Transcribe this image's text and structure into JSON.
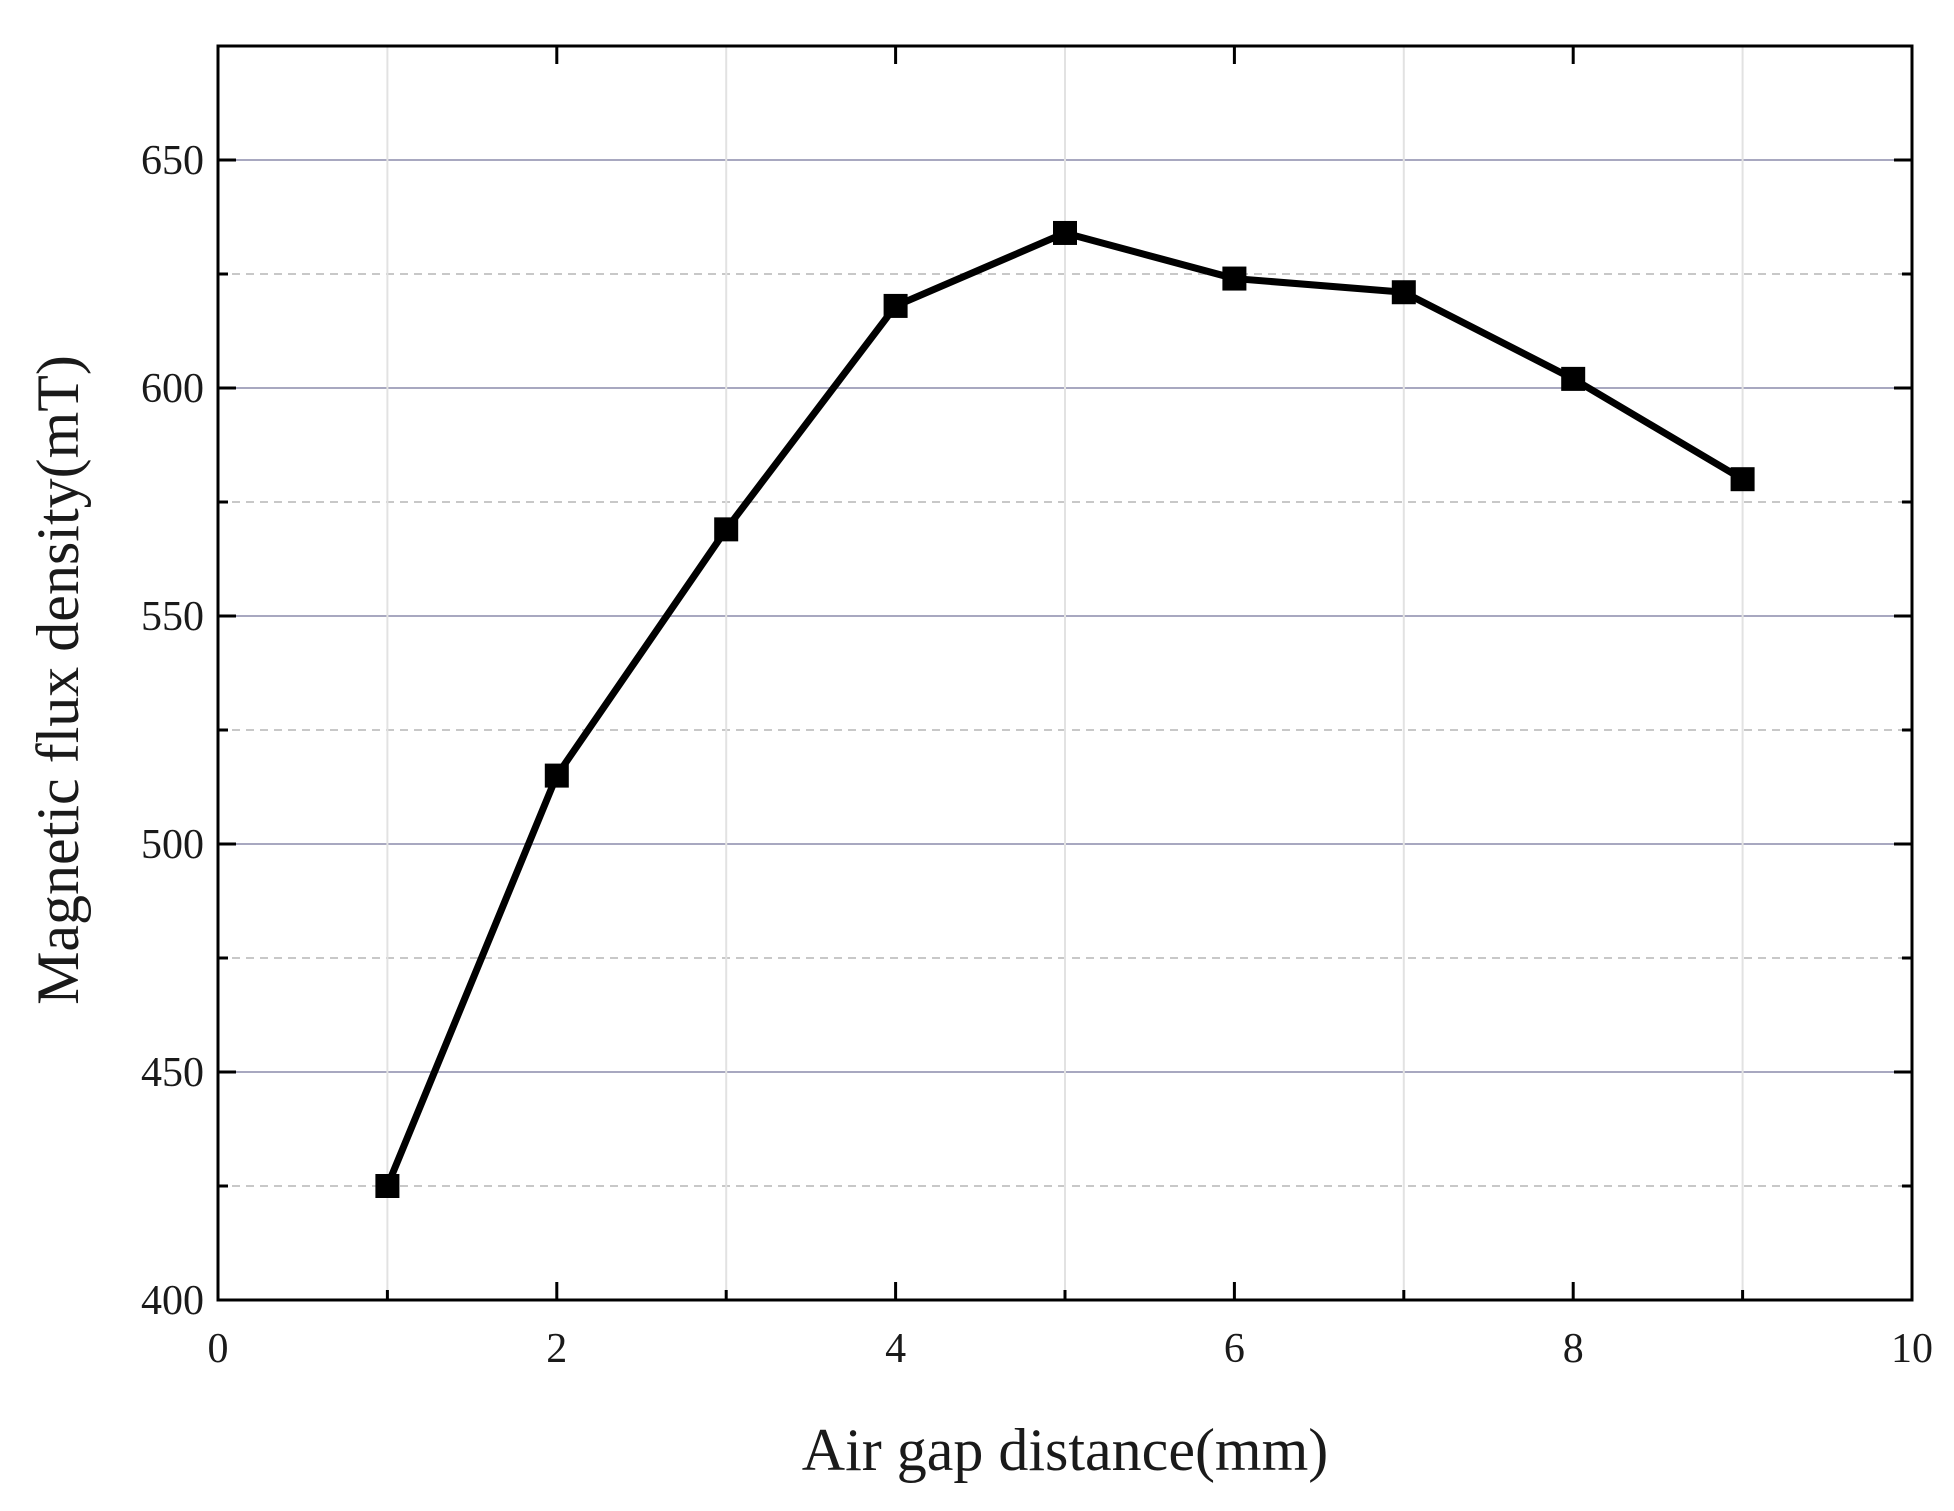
{
  "chart_data": {
    "type": "line",
    "title": "",
    "xlabel": "Air gap distance(mm)",
    "ylabel": "Magnetic flux density(mT)",
    "xlim": [
      0,
      10
    ],
    "ylim": [
      400,
      675
    ],
    "x_ticks": [
      0,
      2,
      4,
      6,
      8,
      10
    ],
    "y_ticks": [
      400,
      450,
      500,
      550,
      600,
      650
    ],
    "y_minor_ticks": [
      425,
      475,
      525,
      575,
      625
    ],
    "grid": true,
    "legend": "none",
    "colors": {
      "line": "#000000",
      "marker": "#000000",
      "major_grid": "#a8a8c0",
      "minor_grid": "#c8c8c8"
    },
    "series": [
      {
        "marker": "square",
        "x": [
          1,
          2,
          3,
          4,
          5,
          6,
          7,
          8,
          9
        ],
        "y": [
          425,
          515,
          569,
          618,
          634,
          624,
          621,
          602,
          580
        ]
      }
    ]
  }
}
